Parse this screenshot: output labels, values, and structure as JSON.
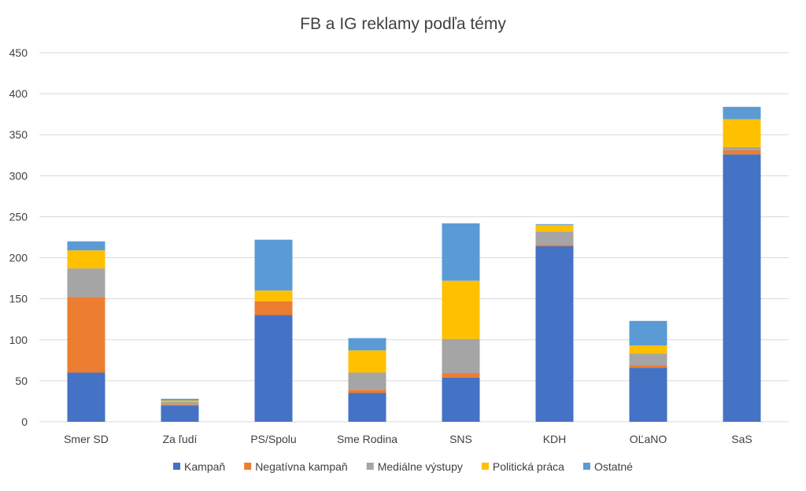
{
  "chart_data": {
    "type": "bar",
    "stacked": true,
    "title": "FB a IG reklamy podľa témy",
    "xlabel": "",
    "ylabel": "",
    "ylim": [
      0,
      450
    ],
    "yticks": [
      0,
      50,
      100,
      150,
      200,
      250,
      300,
      350,
      400,
      450
    ],
    "grid": true,
    "legend_position": "bottom",
    "categories": [
      "Smer SD",
      "Za ľudí",
      "PS/Spolu",
      "Sme Rodina",
      "SNS",
      "KDH",
      "OĽaNO",
      "SaS"
    ],
    "series": [
      {
        "name": "Kampaň",
        "color": "#4472c4",
        "values": [
          60,
          20,
          130,
          35,
          54,
          214,
          66,
          326
        ]
      },
      {
        "name": "Negatívna kampaň",
        "color": "#ed7d31",
        "values": [
          92,
          1,
          17,
          4,
          5,
          2,
          3,
          5
        ]
      },
      {
        "name": "Mediálne výstupy",
        "color": "#a5a5a5",
        "values": [
          35,
          3,
          0,
          21,
          42,
          16,
          14,
          4
        ]
      },
      {
        "name": "Politická práca",
        "color": "#ffc000",
        "values": [
          22,
          2,
          13,
          27,
          71,
          8,
          10,
          34
        ]
      },
      {
        "name": "Ostatné",
        "color": "#5b9bd5",
        "values": [
          11,
          2,
          62,
          15,
          70,
          1,
          30,
          15
        ]
      }
    ]
  }
}
